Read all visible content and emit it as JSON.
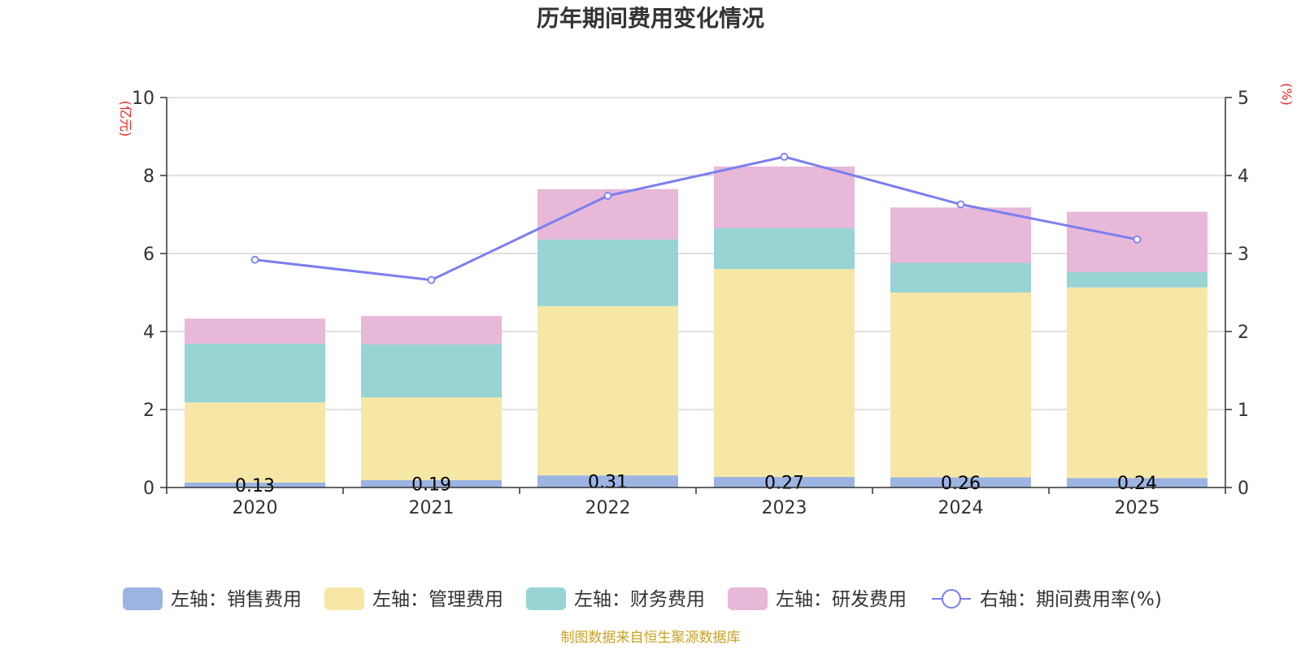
{
  "chart_data": {
    "type": "bar",
    "stacked": true,
    "title": "历年期间费用变化情况",
    "categories": [
      "2020",
      "2021",
      "2022",
      "2023",
      "2024",
      "2025"
    ],
    "series": [
      {
        "name": "左轴：销售费用",
        "axis": "left",
        "color": "#9BB4E2",
        "values": [
          0.13,
          0.19,
          0.31,
          0.27,
          0.26,
          0.24
        ],
        "labels": [
          "0.13",
          "0.19",
          "0.31",
          "0.27",
          "0.26",
          "0.24"
        ]
      },
      {
        "name": "左轴：管理费用",
        "axis": "left",
        "color": "#F7E7A7",
        "values": [
          2.05,
          2.12,
          4.34,
          5.33,
          4.74,
          4.89
        ]
      },
      {
        "name": "左轴：财务费用",
        "axis": "left",
        "color": "#98D4D4",
        "values": [
          1.51,
          1.36,
          1.71,
          1.05,
          0.76,
          0.39
        ]
      },
      {
        "name": "左轴：研发费用",
        "axis": "left",
        "color": "#E7B8D8",
        "values": [
          0.64,
          0.73,
          1.29,
          1.58,
          1.42,
          1.55
        ]
      },
      {
        "name": "右轴：期间费用率(%)",
        "axis": "right",
        "type": "line",
        "color": "#7B7EF0",
        "values": [
          2.92,
          2.66,
          3.74,
          4.24,
          3.63,
          3.18
        ]
      }
    ],
    "left_axis": {
      "label": "(亿元)",
      "min": 0,
      "max": 10,
      "ticks": [
        "0",
        "2",
        "4",
        "6",
        "8",
        "10"
      ]
    },
    "right_axis": {
      "label": "(%)",
      "min": 0,
      "max": 5,
      "ticks": [
        "0",
        "1",
        "2",
        "3",
        "4",
        "5"
      ]
    },
    "grid": true,
    "legend_position": "bottom"
  },
  "colors": {
    "axis_label": "#E8251E",
    "source": "#C9A227",
    "grid": "#CCCCCC",
    "axis": "#333333"
  },
  "source": "制图数据来自恒生聚源数据库"
}
